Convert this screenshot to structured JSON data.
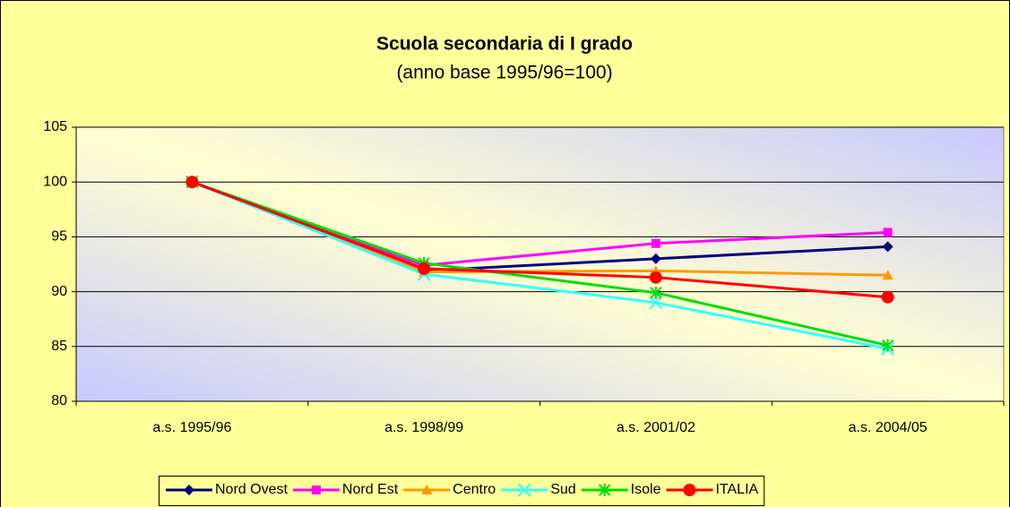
{
  "chart_data": {
    "type": "line",
    "title": "Scuola secondaria di I grado",
    "subtitle": "(anno base 1995/96=100)",
    "categories": [
      "a.s. 1995/96",
      "a.s. 1998/99",
      "a.s. 2001/02",
      "a.s. 2004/05"
    ],
    "series": [
      {
        "name": "Nord Ovest",
        "color": "#000080",
        "marker": "diamond",
        "values": [
          100,
          91.9,
          93.0,
          94.1
        ]
      },
      {
        "name": "Nord Est",
        "color": "#FF00FF",
        "marker": "square",
        "values": [
          100,
          92.4,
          94.4,
          95.4
        ]
      },
      {
        "name": "Centro",
        "color": "#FF9900",
        "marker": "triangle",
        "values": [
          100,
          91.8,
          91.9,
          91.5
        ]
      },
      {
        "name": "Sud",
        "color": "#33FFFF",
        "marker": "x",
        "values": [
          100,
          91.6,
          89.0,
          84.8
        ]
      },
      {
        "name": "Isole",
        "color": "#00DD00",
        "marker": "star",
        "values": [
          100,
          92.6,
          89.9,
          85.1
        ]
      },
      {
        "name": "ITALIA",
        "color": "#FF0000",
        "marker": "circle",
        "values": [
          100,
          92.1,
          91.3,
          89.5
        ]
      }
    ],
    "ylim": [
      80,
      105
    ],
    "yticks": [
      80,
      85,
      90,
      95,
      100,
      105
    ],
    "grid": true,
    "legend": "bottom"
  }
}
